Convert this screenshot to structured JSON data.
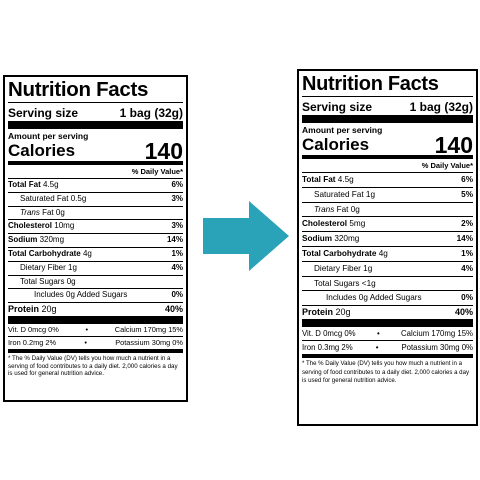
{
  "arrow_color": "#2aa3b8",
  "left": {
    "title": "Nutrition Facts",
    "serving_label": "Serving size",
    "serving_value": "1 bag (32g)",
    "amount_per_serving": "Amount per serving",
    "calories_label": "Calories",
    "calories_value": "140",
    "dv_header": "% Daily Value*",
    "rows": [
      {
        "name": "Total Fat",
        "amount": "4.5g",
        "pct": "6%"
      },
      {
        "name": "Saturated Fat",
        "amount": "0.5g",
        "pct": "3%"
      },
      {
        "name": "Trans",
        "amount": "Fat 0g",
        "pct": ""
      },
      {
        "name": "Cholesterol",
        "amount": "10mg",
        "pct": "3%"
      },
      {
        "name": "Sodium",
        "amount": "320mg",
        "pct": "14%"
      },
      {
        "name": "Total Carbohydrate",
        "amount": "4g",
        "pct": "1%"
      },
      {
        "name": "Dietary Fiber",
        "amount": "1g",
        "pct": "4%"
      },
      {
        "name": "Total Sugars",
        "amount": "0g",
        "pct": ""
      },
      {
        "name": "Includes 0g Added Sugars",
        "amount": "",
        "pct": "0%"
      },
      {
        "name": "Protein",
        "amount": "20g",
        "pct": "40%"
      }
    ],
    "vit_d": "Vit. D 0mcg 0%",
    "calcium": "Calcium 170mg 15%",
    "iron": "Iron 0.2mg 2%",
    "potassium": "Potassium 30mg 0%",
    "footnote": "* The % Daily Value (DV) tells you how much a nutrient in a serving of food contributes to a daily diet. 2,000 calories a day is used for general nutrition advice."
  },
  "right": {
    "title": "Nutrition Facts",
    "serving_label": "Serving size",
    "serving_value": "1 bag (32g)",
    "amount_per_serving": "Amount per serving",
    "calories_label": "Calories",
    "calories_value": "140",
    "dv_header": "% Daily Value*",
    "rows": [
      {
        "name": "Total Fat",
        "amount": "4.5g",
        "pct": "6%"
      },
      {
        "name": "Saturated Fat",
        "amount": "1g",
        "pct": "5%"
      },
      {
        "name": "Trans",
        "amount": "Fat 0g",
        "pct": ""
      },
      {
        "name": "Cholesterol",
        "amount": "5mg",
        "pct": "2%"
      },
      {
        "name": "Sodium",
        "amount": "320mg",
        "pct": "14%"
      },
      {
        "name": "Total Carbohydrate",
        "amount": "4g",
        "pct": "1%"
      },
      {
        "name": "Dietary Fiber",
        "amount": "1g",
        "pct": "4%"
      },
      {
        "name": "Total Sugars",
        "amount": "<1g",
        "pct": ""
      },
      {
        "name": "Includes 0g Added Sugars",
        "amount": "",
        "pct": "0%"
      },
      {
        "name": "Protein",
        "amount": "20g",
        "pct": "40%"
      }
    ],
    "vit_d": "Vit. D 0mcg 0%",
    "calcium": "Calcium 170mg 15%",
    "iron": "Iron 0.3mg 2%",
    "potassium": "Potassium 30mg 0%",
    "footnote": "* The % Daily Value (DV) tells you how much a nutrient in a serving of food contributes to a daily diet. 2,000 calories a day is used for general nutrition advice."
  }
}
